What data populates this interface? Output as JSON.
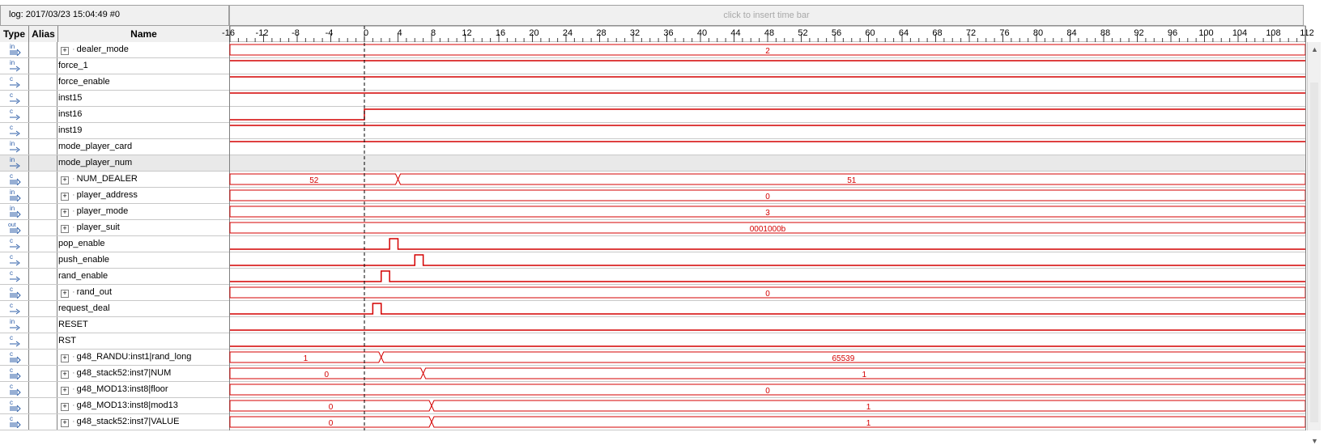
{
  "log_label": "log: 2017/03/23 15:04:49  #0",
  "timebar_hint": "click to insert time bar",
  "columns": {
    "type": "Type",
    "alias": "Alias",
    "name": "Name"
  },
  "ruler": {
    "ticks": [
      "-16",
      "-12",
      "-8",
      "-4",
      "0",
      "4",
      "8",
      "12",
      "16",
      "20",
      "24",
      "28",
      "32",
      "36",
      "40",
      "44",
      "48",
      "52",
      "56",
      "60",
      "64",
      "68",
      "72",
      "76",
      "80",
      "84",
      "88",
      "92",
      "96",
      "100",
      "104",
      "108",
      "112"
    ]
  },
  "colors": {
    "wave": "#d40000",
    "cursor": "#000000",
    "grid": "#c8c8c8",
    "icon": "#2f5fa8"
  },
  "signals": [
    {
      "type": "in-bus",
      "name": "dealer_mode",
      "bus": true,
      "values": [
        {
          "from": -16,
          "to": 112,
          "v": "2"
        }
      ]
    },
    {
      "type": "in",
      "name": "force_1",
      "level": [
        {
          "from": -16,
          "to": 112,
          "v": 1
        }
      ]
    },
    {
      "type": "comb",
      "name": "force_enable",
      "level": [
        {
          "from": -16,
          "to": 112,
          "v": 1
        }
      ]
    },
    {
      "type": "comb",
      "name": "inst15",
      "level": [
        {
          "from": -16,
          "to": 112,
          "v": 1
        }
      ]
    },
    {
      "type": "comb",
      "name": "inst16",
      "level": [
        {
          "from": -16,
          "to": 0,
          "v": 0
        },
        {
          "from": 0,
          "to": 112,
          "v": 1
        }
      ]
    },
    {
      "type": "comb",
      "name": "inst19",
      "level": [
        {
          "from": -16,
          "to": 112,
          "v": 1
        }
      ]
    },
    {
      "type": "in",
      "name": "mode_player_card",
      "level": [
        {
          "from": -16,
          "to": 112,
          "v": 1
        }
      ]
    },
    {
      "type": "in",
      "name": "mode_player_num",
      "selected": true,
      "level": []
    },
    {
      "type": "comb-bus",
      "name": "NUM_DEALER",
      "bus": true,
      "values": [
        {
          "from": -16,
          "to": 4,
          "v": "52"
        },
        {
          "from": 4,
          "to": 112,
          "v": "51"
        }
      ]
    },
    {
      "type": "in-bus",
      "name": "player_address",
      "bus": true,
      "values": [
        {
          "from": -16,
          "to": 112,
          "v": "0"
        }
      ]
    },
    {
      "type": "in-bus",
      "name": "player_mode",
      "bus": true,
      "values": [
        {
          "from": -16,
          "to": 112,
          "v": "3"
        }
      ]
    },
    {
      "type": "out-bus",
      "name": "player_suit",
      "bus": true,
      "values": [
        {
          "from": -16,
          "to": 112,
          "v": "0001000b"
        }
      ]
    },
    {
      "type": "comb",
      "name": "pop_enable",
      "level": [
        {
          "from": -16,
          "to": 3,
          "v": 0
        },
        {
          "from": 3,
          "to": 4,
          "v": 1
        },
        {
          "from": 4,
          "to": 112,
          "v": 0
        }
      ]
    },
    {
      "type": "comb",
      "name": "push_enable",
      "level": [
        {
          "from": -16,
          "to": 6,
          "v": 0
        },
        {
          "from": 6,
          "to": 7,
          "v": 1
        },
        {
          "from": 7,
          "to": 112,
          "v": 0
        }
      ]
    },
    {
      "type": "comb",
      "name": "rand_enable",
      "level": [
        {
          "from": -16,
          "to": 2,
          "v": 0
        },
        {
          "from": 2,
          "to": 3,
          "v": 1
        },
        {
          "from": 3,
          "to": 112,
          "v": 0
        }
      ]
    },
    {
      "type": "comb-bus",
      "name": "rand_out",
      "bus": true,
      "values": [
        {
          "from": -16,
          "to": 112,
          "v": "0"
        }
      ]
    },
    {
      "type": "comb",
      "name": "request_deal",
      "level": [
        {
          "from": -16,
          "to": 1,
          "v": 0
        },
        {
          "from": 1,
          "to": 2,
          "v": 1
        },
        {
          "from": 2,
          "to": 112,
          "v": 0
        }
      ]
    },
    {
      "type": "in",
      "name": "RESET",
      "level": [
        {
          "from": -16,
          "to": 112,
          "v": 0
        }
      ]
    },
    {
      "type": "comb",
      "name": "RST",
      "level": [
        {
          "from": -16,
          "to": 112,
          "v": 0
        }
      ]
    },
    {
      "type": "comb-bus",
      "name": "g48_RANDU:inst1|rand_long",
      "bus": true,
      "values": [
        {
          "from": -16,
          "to": 2,
          "v": "1"
        },
        {
          "from": 2,
          "to": 112,
          "v": "65539"
        }
      ]
    },
    {
      "type": "comb-bus",
      "name": "g48_stack52:inst7|NUM",
      "bus": true,
      "values": [
        {
          "from": -16,
          "to": 7,
          "v": "0"
        },
        {
          "from": 7,
          "to": 112,
          "v": "1"
        }
      ]
    },
    {
      "type": "comb-bus",
      "name": "g48_MOD13:inst8|floor",
      "bus": true,
      "values": [
        {
          "from": -16,
          "to": 112,
          "v": "0"
        }
      ]
    },
    {
      "type": "comb-bus",
      "name": "g48_MOD13:inst8|mod13",
      "bus": true,
      "values": [
        {
          "from": -16,
          "to": 8,
          "v": "0"
        },
        {
          "from": 8,
          "to": 112,
          "v": "1"
        }
      ]
    },
    {
      "type": "comb-bus",
      "name": "g48_stack52:inst7|VALUE",
      "bus": true,
      "values": [
        {
          "from": -16,
          "to": 8,
          "v": "0"
        },
        {
          "from": 8,
          "to": 112,
          "v": "1"
        }
      ]
    }
  ]
}
